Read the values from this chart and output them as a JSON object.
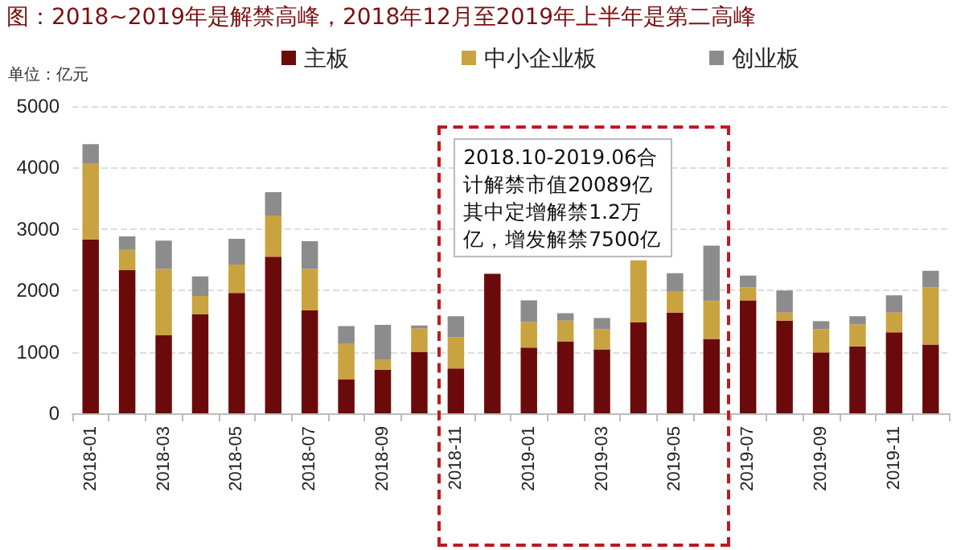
{
  "chart_data": {
    "type": "bar",
    "stacked": true,
    "title": "图：2018~2019年是解禁高峰，2018年12月至2019年上半年是第二高峰",
    "ylabel": "单位：亿元",
    "categories": [
      "2018-01",
      null,
      "2018-03",
      null,
      "2018-05",
      null,
      "2018-07",
      null,
      "2018-09",
      null,
      "2018-11",
      null,
      "2019-01",
      null,
      "2019-03",
      null,
      "2019-05",
      null,
      "2019-07",
      null,
      "2019-09",
      null,
      "2019-11",
      null
    ],
    "series": [
      {
        "name": "主板",
        "color": "#6b0a0a",
        "values": [
          2830,
          2330,
          1270,
          1610,
          1960,
          2550,
          1680,
          550,
          710,
          1000,
          730,
          2270,
          1070,
          1170,
          1040,
          1480,
          1640,
          1210,
          1840,
          1510,
          990,
          1090,
          1320,
          1120
        ]
      },
      {
        "name": "中小企业板",
        "color": "#c9a33f",
        "values": [
          1240,
          330,
          1080,
          300,
          460,
          670,
          670,
          580,
          160,
          380,
          510,
          null,
          420,
          340,
          330,
          1010,
          340,
          620,
          210,
          130,
          380,
          360,
          320,
          930
        ]
      },
      {
        "name": "创业板",
        "color": "#8c8c8c",
        "values": [
          310,
          220,
          460,
          320,
          420,
          380,
          450,
          290,
          570,
          50,
          340,
          null,
          350,
          120,
          180,
          null,
          300,
          900,
          190,
          360,
          130,
          130,
          280,
          270
        ]
      }
    ],
    "ylim": [
      0,
      5000
    ],
    "yticks": [
      0,
      1000,
      2000,
      3000,
      4000,
      5000
    ],
    "grid": "y",
    "legend": "top",
    "annotations": [
      "2018.10-2019.06合计解禁市值20089亿其中定增解禁1.2万亿，增发解禁7500亿"
    ]
  }
}
